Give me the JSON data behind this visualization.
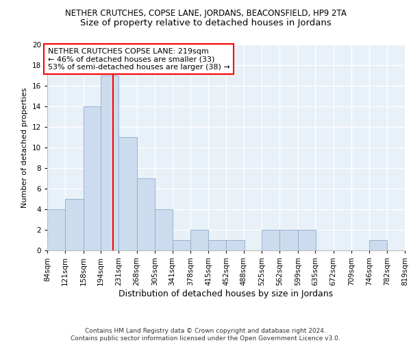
{
  "title": "NETHER CRUTCHES, COPSE LANE, JORDANS, BEACONSFIELD, HP9 2TA",
  "subtitle": "Size of property relative to detached houses in Jordans",
  "xlabel": "Distribution of detached houses by size in Jordans",
  "ylabel": "Number of detached properties",
  "bin_edges": [
    84,
    121,
    158,
    194,
    231,
    268,
    305,
    341,
    378,
    415,
    452,
    488,
    525,
    562,
    599,
    635,
    672,
    709,
    746,
    782,
    819
  ],
  "bin_labels": [
    "84sqm",
    "121sqm",
    "158sqm",
    "194sqm",
    "231sqm",
    "268sqm",
    "305sqm",
    "341sqm",
    "378sqm",
    "415sqm",
    "452sqm",
    "488sqm",
    "525sqm",
    "562sqm",
    "599sqm",
    "635sqm",
    "672sqm",
    "709sqm",
    "746sqm",
    "782sqm",
    "819sqm"
  ],
  "counts": [
    4,
    5,
    14,
    17,
    11,
    7,
    4,
    1,
    2,
    1,
    1,
    0,
    2,
    2,
    2,
    0,
    0,
    0,
    1,
    0
  ],
  "bar_color": "#ccdcee",
  "bar_edge_color": "#8aaac8",
  "reference_line_x": 219,
  "reference_line_color": "red",
  "annotation_text": "NETHER CRUTCHES COPSE LANE: 219sqm\n← 46% of detached houses are smaller (33)\n53% of semi-detached houses are larger (38) →",
  "annotation_box_color": "white",
  "annotation_box_edge_color": "red",
  "ylim": [
    0,
    20
  ],
  "yticks": [
    0,
    2,
    4,
    6,
    8,
    10,
    12,
    14,
    16,
    18,
    20
  ],
  "footer_text": "Contains HM Land Registry data © Crown copyright and database right 2024.\nContains public sector information licensed under the Open Government Licence v3.0.",
  "background_color": "#e8f0f8",
  "grid_color": "white",
  "title_fontsize": 8.5,
  "subtitle_fontsize": 9.5,
  "ylabel_fontsize": 8,
  "xlabel_fontsize": 9,
  "tick_fontsize": 7.5,
  "annotation_fontsize": 8,
  "footer_fontsize": 6.5
}
